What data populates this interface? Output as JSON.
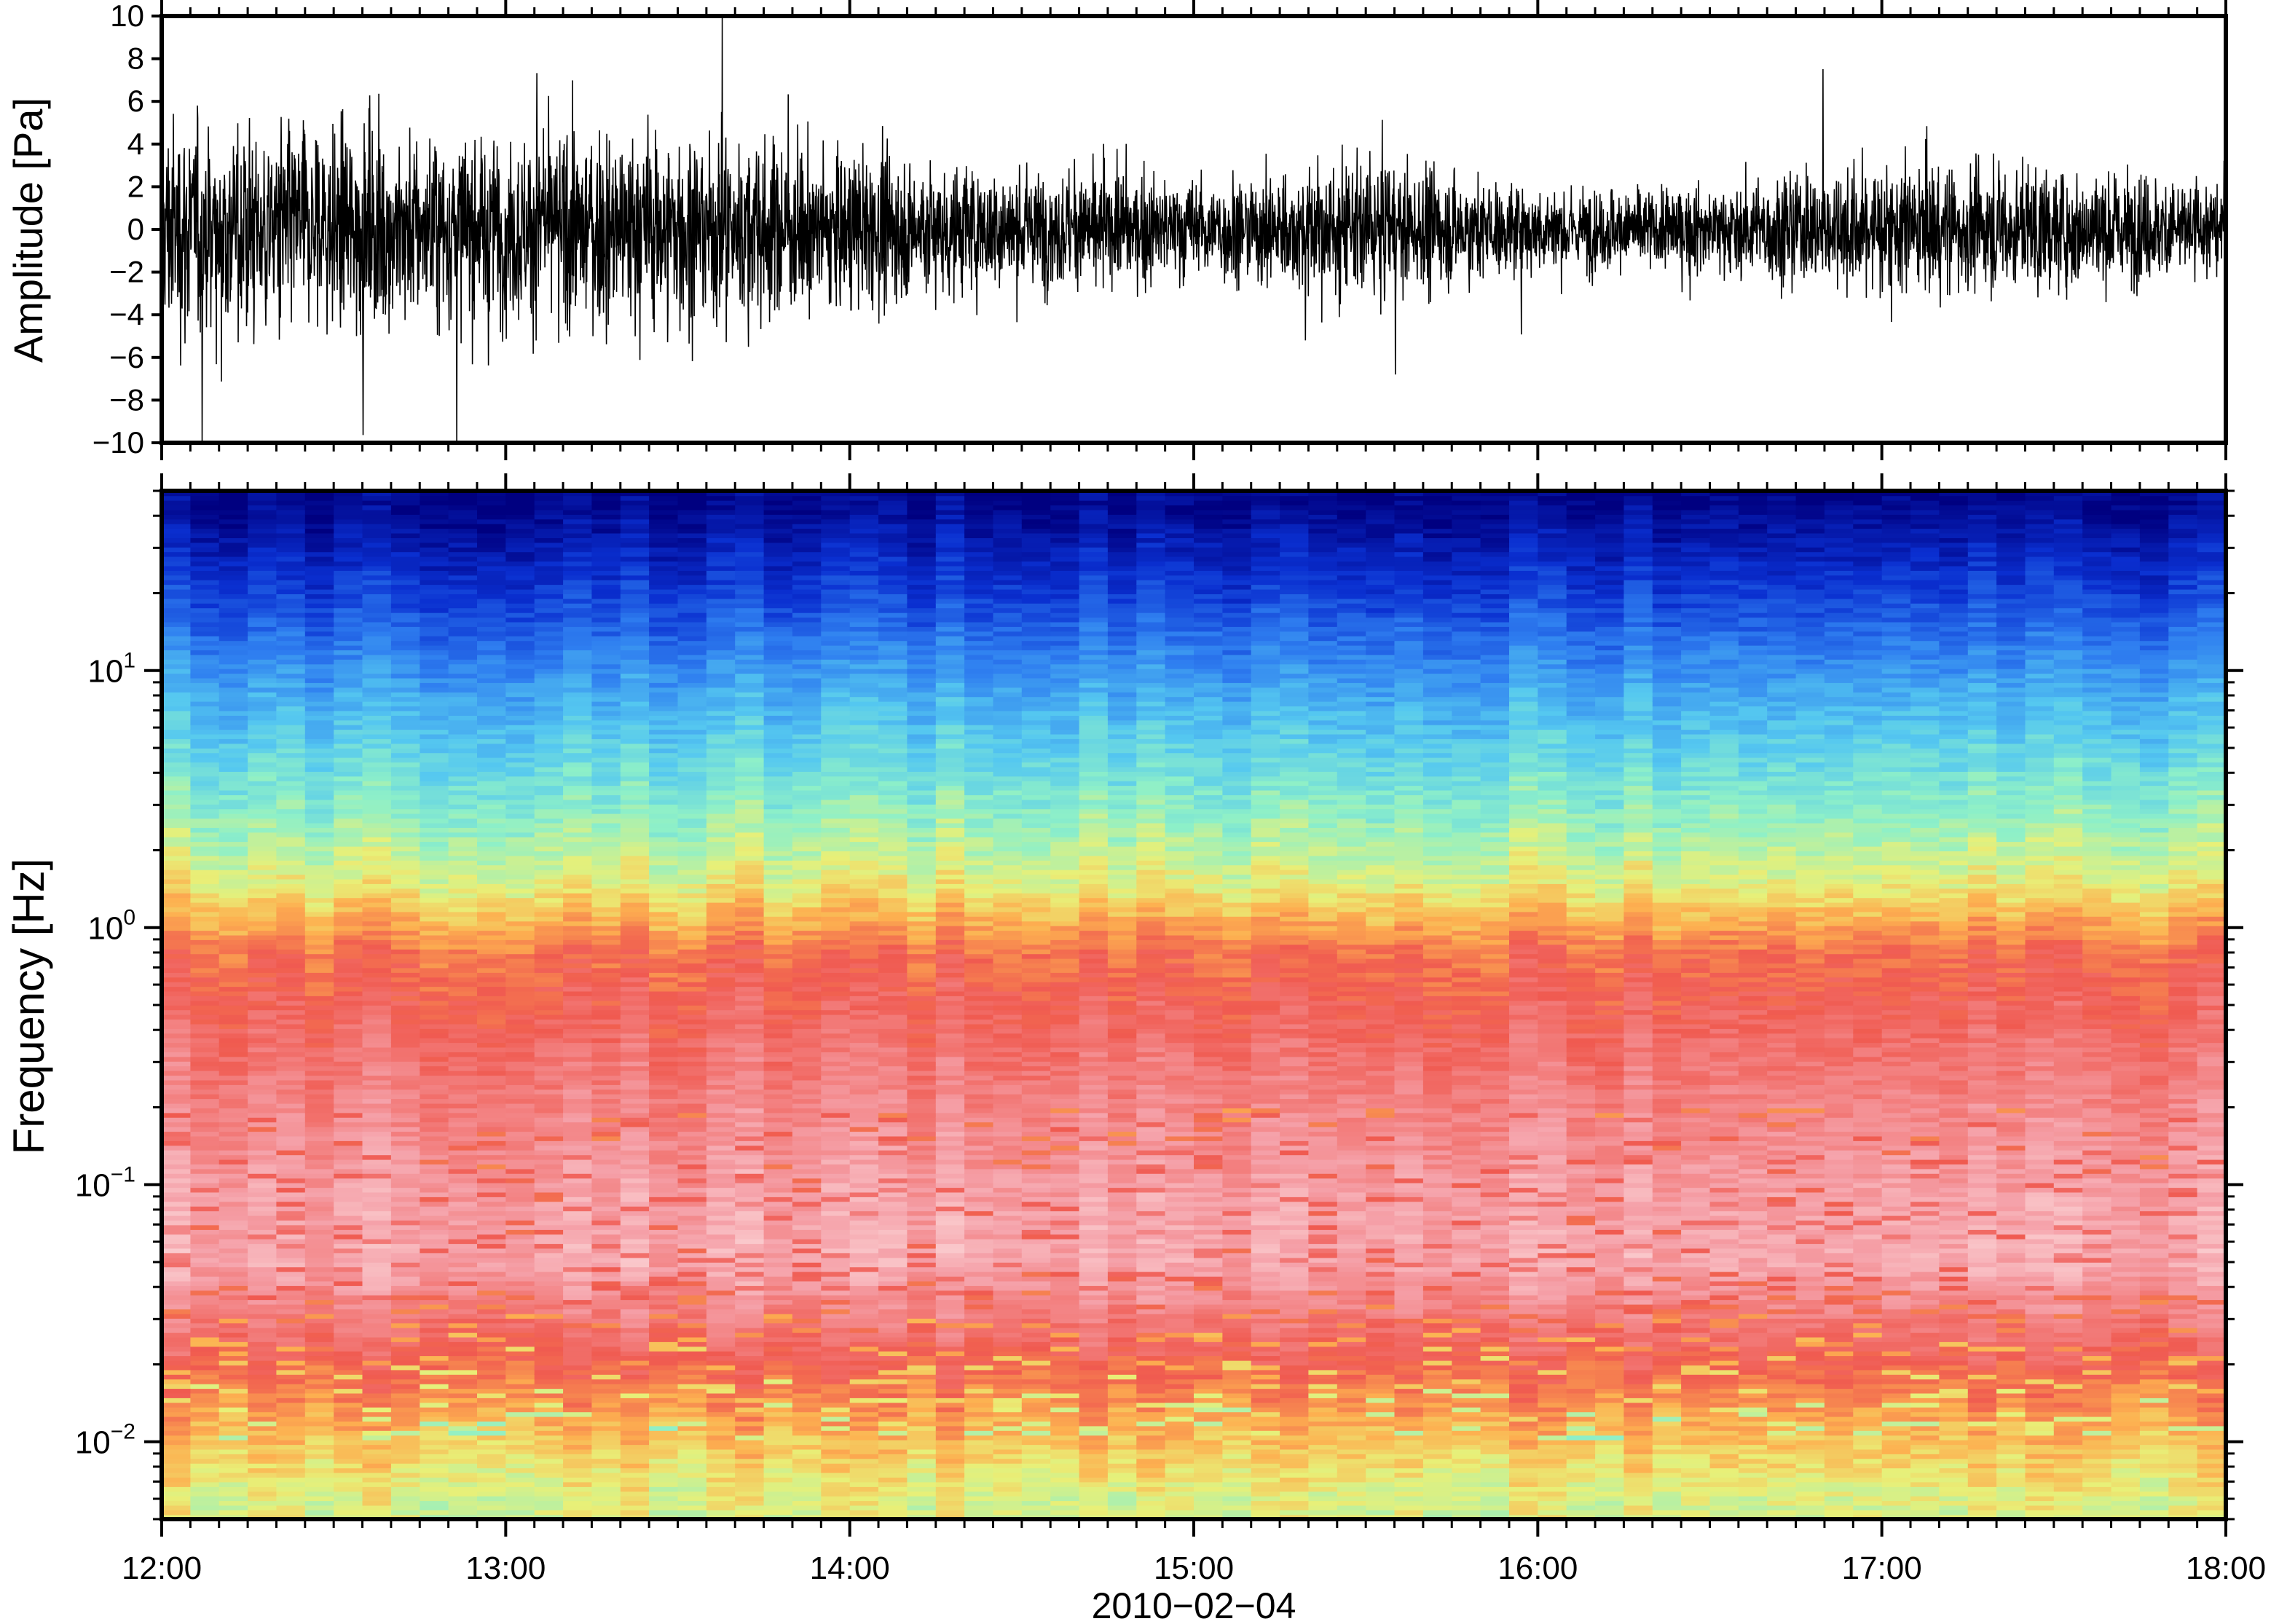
{
  "chart_data": [
    {
      "type": "line",
      "xlabel": "",
      "ylabel": "Amplitude [Pa]",
      "x_range": [
        "2010-02-04 12:00",
        "2010-02-04 18:00"
      ],
      "ylim": [
        -10,
        10
      ],
      "yticks": [
        10,
        8,
        6,
        4,
        2,
        0,
        -2,
        -4,
        -6,
        -8,
        -10
      ],
      "ytick_labels": [
        "10",
        "8",
        "6",
        "4",
        "2",
        "0",
        "−2",
        "−4",
        "−6",
        "−8",
        "−10"
      ],
      "series": [
        {
          "color": "#000000",
          "envelope_time": [
            "12:00",
            "12:30",
            "13:00",
            "13:30",
            "14:00",
            "14:30",
            "15:00",
            "15:30",
            "16:00",
            "16:30",
            "17:00",
            "17:30",
            "18:00"
          ],
          "envelope_amplitude_pa": [
            6.5,
            6.0,
            5.5,
            6.0,
            4.5,
            3.5,
            3.0,
            4.0,
            2.5,
            2.5,
            4.0,
            3.5,
            3.0
          ],
          "peak_amplitude_pa": 10
        }
      ],
      "grid": false
    },
    {
      "type": "heatmap",
      "xlabel": "2010−02−04",
      "ylabel": "Frequency [Hz]",
      "xticks": [
        "12:00",
        "13:00",
        "14:00",
        "15:00",
        "16:00",
        "17:00",
        "18:00"
      ],
      "x_range": [
        "2010-02-04 12:00",
        "2010-02-04 18:00"
      ],
      "yscale": "log",
      "ylim": [
        0.005,
        50
      ],
      "yticks": [
        0.01,
        0.1,
        1,
        10
      ],
      "ytick_labels": [
        {
          "base": "10",
          "exp": "−2"
        },
        {
          "base": "10",
          "exp": "−1"
        },
        {
          "base": "10",
          "exp": "0"
        },
        {
          "base": "10",
          "exp": "1"
        }
      ],
      "colormap": [
        "#000080",
        "#0a2fd0",
        "#2f7ff0",
        "#55c8f0",
        "#8ef0c8",
        "#e8f078",
        "#fdb050",
        "#f05a50",
        "#f5a0a8",
        "#fde0e0"
      ],
      "colormap_note_levels": [
        0,
        0.12,
        0.24,
        0.36,
        0.46,
        0.56,
        0.64,
        0.74,
        0.88,
        1.0
      ],
      "relative_power_by_frequency": {
        "freq_hz": [
          45,
          20,
          8,
          3,
          1.5,
          0.8,
          0.3,
          0.1,
          0.05,
          0.02,
          0.01,
          0.006
        ],
        "level": [
          0.02,
          0.15,
          0.32,
          0.46,
          0.56,
          0.72,
          0.8,
          0.88,
          0.9,
          0.74,
          0.62,
          0.55
        ]
      },
      "time_segments_count": 72,
      "grid": false
    }
  ]
}
